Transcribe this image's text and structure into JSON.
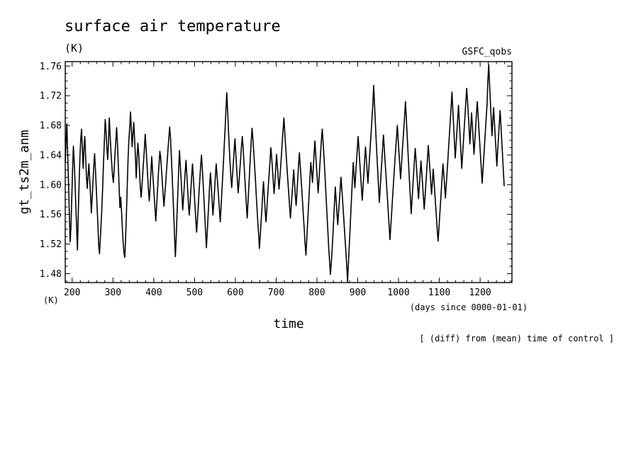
{
  "chart_data": {
    "type": "line",
    "title": "surface air temperature",
    "units": "(K)",
    "run_label": "GSFC_qobs",
    "xlabel": "time",
    "xunits": "(days since 0000-01-01)",
    "ylabel": "gt_ts2m_anm",
    "yunits_corner": "(K)",
    "footnote": "[ (diff) from (mean) time of control ]",
    "xlim": [
      183,
      1278
    ],
    "ylim": [
      1.468,
      1.766
    ],
    "xticks_major": [
      200,
      300,
      400,
      500,
      600,
      700,
      800,
      900,
      1000,
      1100,
      1200
    ],
    "xtick_labels": [
      "200",
      "300",
      "400",
      "500",
      "600",
      "700",
      "800",
      "900",
      "1000",
      "1100",
      "1200"
    ],
    "yticks_major": [
      1.48,
      1.52,
      1.56,
      1.6,
      1.64,
      1.68,
      1.72,
      1.76
    ],
    "ytick_labels": [
      "1.48",
      "1.52",
      "1.56",
      "1.60",
      "1.64",
      "1.68",
      "1.72",
      "1.76"
    ],
    "series": [
      {
        "name": "gt_ts2m_anm",
        "x_start": 183,
        "x_step": 2,
        "values": [
          1.63,
          1.66,
          1.682,
          1.641,
          1.603,
          1.562,
          1.523,
          1.542,
          1.581,
          1.621,
          1.652,
          1.631,
          1.604,
          1.571,
          1.541,
          1.512,
          1.562,
          1.602,
          1.637,
          1.661,
          1.675,
          1.648,
          1.622,
          1.65,
          1.665,
          1.638,
          1.611,
          1.595,
          1.612,
          1.628,
          1.608,
          1.586,
          1.562,
          1.582,
          1.604,
          1.625,
          1.642,
          1.621,
          1.597,
          1.571,
          1.547,
          1.518,
          1.507,
          1.527,
          1.548,
          1.571,
          1.6,
          1.632,
          1.66,
          1.688,
          1.672,
          1.65,
          1.634,
          1.656,
          1.69,
          1.667,
          1.646,
          1.628,
          1.612,
          1.603,
          1.621,
          1.642,
          1.659,
          1.677,
          1.656,
          1.628,
          1.598,
          1.569,
          1.583,
          1.565,
          1.541,
          1.522,
          1.508,
          1.502,
          1.528,
          1.561,
          1.598,
          1.634,
          1.661,
          1.676,
          1.698,
          1.676,
          1.651,
          1.668,
          1.684,
          1.662,
          1.638,
          1.609,
          1.634,
          1.656,
          1.642,
          1.619,
          1.597,
          1.583,
          1.598,
          1.615,
          1.632,
          1.648,
          1.668,
          1.651,
          1.632,
          1.612,
          1.593,
          1.578,
          1.596,
          1.616,
          1.638,
          1.62,
          1.603,
          1.585,
          1.568,
          1.551,
          1.571,
          1.59,
          1.612,
          1.628,
          1.645,
          1.636,
          1.62,
          1.603,
          1.587,
          1.571,
          1.586,
          1.6,
          1.617,
          1.632,
          1.649,
          1.663,
          1.678,
          1.664,
          1.64,
          1.614,
          1.587,
          1.56,
          1.53,
          1.503,
          1.528,
          1.559,
          1.589,
          1.619,
          1.646,
          1.627,
          1.608,
          1.587,
          1.566,
          1.582,
          1.6,
          1.617,
          1.633,
          1.614,
          1.594,
          1.574,
          1.559,
          1.575,
          1.594,
          1.612,
          1.628,
          1.61,
          1.591,
          1.572,
          1.553,
          1.536,
          1.552,
          1.57,
          1.59,
          1.608,
          1.626,
          1.64,
          1.622,
          1.602,
          1.581,
          1.558,
          1.537,
          1.515,
          1.534,
          1.556,
          1.577,
          1.6,
          1.616,
          1.599,
          1.58,
          1.559,
          1.574,
          1.592,
          1.611,
          1.628,
          1.614,
          1.598,
          1.583,
          1.566,
          1.55,
          1.571,
          1.591,
          1.611,
          1.632,
          1.655,
          1.677,
          1.702,
          1.724,
          1.7,
          1.675,
          1.651,
          1.63,
          1.611,
          1.596,
          1.612,
          1.628,
          1.645,
          1.662,
          1.643,
          1.624,
          1.605,
          1.589,
          1.604,
          1.62,
          1.635,
          1.652,
          1.665,
          1.65,
          1.631,
          1.611,
          1.592,
          1.574,
          1.555,
          1.576,
          1.597,
          1.618,
          1.64,
          1.66,
          1.676,
          1.661,
          1.645,
          1.627,
          1.609,
          1.588,
          1.569,
          1.55,
          1.533,
          1.514,
          1.53,
          1.549,
          1.567,
          1.587,
          1.604,
          1.585,
          1.566,
          1.55,
          1.565,
          1.583,
          1.6,
          1.616,
          1.632,
          1.65,
          1.637,
          1.621,
          1.604,
          1.588,
          1.604,
          1.622,
          1.641,
          1.626,
          1.609,
          1.594,
          1.609,
          1.624,
          1.64,
          1.658,
          1.673,
          1.69,
          1.672,
          1.654,
          1.637,
          1.619,
          1.603,
          1.587,
          1.57,
          1.555,
          1.571,
          1.587,
          1.603,
          1.62,
          1.603,
          1.586,
          1.572,
          1.59,
          1.609,
          1.627,
          1.643,
          1.626,
          1.609,
          1.592,
          1.574,
          1.556,
          1.539,
          1.52,
          1.505,
          1.525,
          1.547,
          1.568,
          1.589,
          1.611,
          1.63,
          1.617,
          1.603,
          1.622,
          1.641,
          1.659,
          1.641,
          1.623,
          1.606,
          1.589,
          1.607,
          1.625,
          1.643,
          1.661,
          1.675,
          1.658,
          1.64,
          1.62,
          1.599,
          1.577,
          1.556,
          1.535,
          1.513,
          1.497,
          1.479,
          1.493,
          1.51,
          1.531,
          1.553,
          1.576,
          1.597,
          1.58,
          1.563,
          1.546,
          1.562,
          1.578,
          1.595,
          1.61,
          1.594,
          1.578,
          1.561,
          1.544,
          1.526,
          1.509,
          1.491,
          1.469,
          1.492,
          1.515,
          1.538,
          1.562,
          1.585,
          1.608,
          1.63,
          1.613,
          1.596,
          1.614,
          1.632,
          1.649,
          1.665,
          1.648,
          1.63,
          1.613,
          1.596,
          1.579,
          1.597,
          1.615,
          1.633,
          1.651,
          1.636,
          1.619,
          1.602,
          1.62,
          1.638,
          1.655,
          1.672,
          1.69,
          1.708,
          1.734,
          1.71,
          1.686,
          1.662,
          1.64,
          1.618,
          1.597,
          1.576,
          1.594,
          1.613,
          1.631,
          1.65,
          1.667,
          1.65,
          1.632,
          1.615,
          1.597,
          1.58,
          1.562,
          1.544,
          1.526,
          1.543,
          1.561,
          1.579,
          1.597,
          1.614,
          1.632,
          1.648,
          1.663,
          1.68,
          1.662,
          1.643,
          1.626,
          1.608,
          1.625,
          1.643,
          1.66,
          1.676,
          1.694,
          1.712,
          1.69,
          1.668,
          1.646,
          1.624,
          1.603,
          1.582,
          1.561,
          1.579,
          1.597,
          1.615,
          1.633,
          1.649,
          1.632,
          1.615,
          1.598,
          1.581,
          1.598,
          1.615,
          1.632,
          1.616,
          1.6,
          1.583,
          1.567,
          1.584,
          1.601,
          1.618,
          1.636,
          1.653,
          1.636,
          1.62,
          1.603,
          1.587,
          1.604,
          1.621,
          1.605,
          1.588,
          1.572,
          1.555,
          1.538,
          1.524,
          1.541,
          1.559,
          1.576,
          1.594,
          1.612,
          1.628,
          1.613,
          1.598,
          1.582,
          1.6,
          1.617,
          1.634,
          1.652,
          1.67,
          1.688,
          1.705,
          1.725,
          1.702,
          1.68,
          1.658,
          1.636,
          1.653,
          1.671,
          1.689,
          1.707,
          1.685,
          1.664,
          1.643,
          1.622,
          1.64,
          1.658,
          1.676,
          1.694,
          1.712,
          1.73,
          1.714,
          1.695,
          1.676,
          1.655,
          1.676,
          1.697,
          1.68,
          1.66,
          1.641,
          1.659,
          1.677,
          1.696,
          1.712,
          1.694,
          1.675,
          1.657,
          1.638,
          1.62,
          1.602,
          1.62,
          1.637,
          1.655,
          1.673,
          1.691,
          1.708,
          1.74,
          1.762,
          1.738,
          1.713,
          1.69,
          1.666,
          1.686,
          1.704,
          1.685,
          1.665,
          1.646,
          1.625,
          1.645,
          1.664,
          1.682,
          1.7,
          1.68,
          1.659,
          1.639,
          1.618,
          1.598
        ]
      }
    ]
  }
}
